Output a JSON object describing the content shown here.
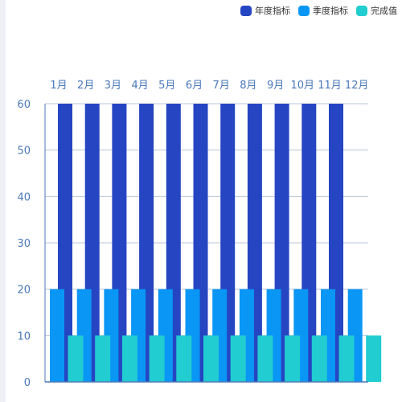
{
  "colors": {
    "annual": "#2545c2",
    "quarter": "#0a96f5",
    "done": "#21cdd0",
    "axis": "#4a78b8",
    "grid": "#b8c6dc"
  },
  "legend": [
    {
      "label": "年度指标",
      "color": "#2545c2"
    },
    {
      "label": "季度指标",
      "color": "#0a96f5"
    },
    {
      "label": "完成值",
      "color": "#21cdd0"
    }
  ],
  "chart_data": {
    "type": "bar",
    "categories": [
      "1月",
      "2月",
      "3月",
      "4月",
      "5月",
      "6月",
      "7月",
      "8月",
      "9月",
      "10月",
      "11月",
      "12月"
    ],
    "series": [
      {
        "name": "年度指标",
        "values": [
          60,
          60,
          60,
          60,
          60,
          60,
          60,
          60,
          60,
          60,
          60,
          null
        ]
      },
      {
        "name": "季度指标",
        "values": [
          20,
          20,
          20,
          20,
          20,
          20,
          20,
          20,
          20,
          20,
          20,
          20
        ]
      },
      {
        "name": "完成值",
        "values": [
          10,
          10,
          10,
          10,
          10,
          10,
          10,
          10,
          10,
          10,
          10,
          10
        ]
      }
    ],
    "ylim": [
      0,
      60
    ],
    "yticks": [
      0,
      10,
      20,
      30,
      40,
      50,
      60
    ],
    "grid": true,
    "legend_position": "top-right",
    "category_labels_position": "top"
  }
}
